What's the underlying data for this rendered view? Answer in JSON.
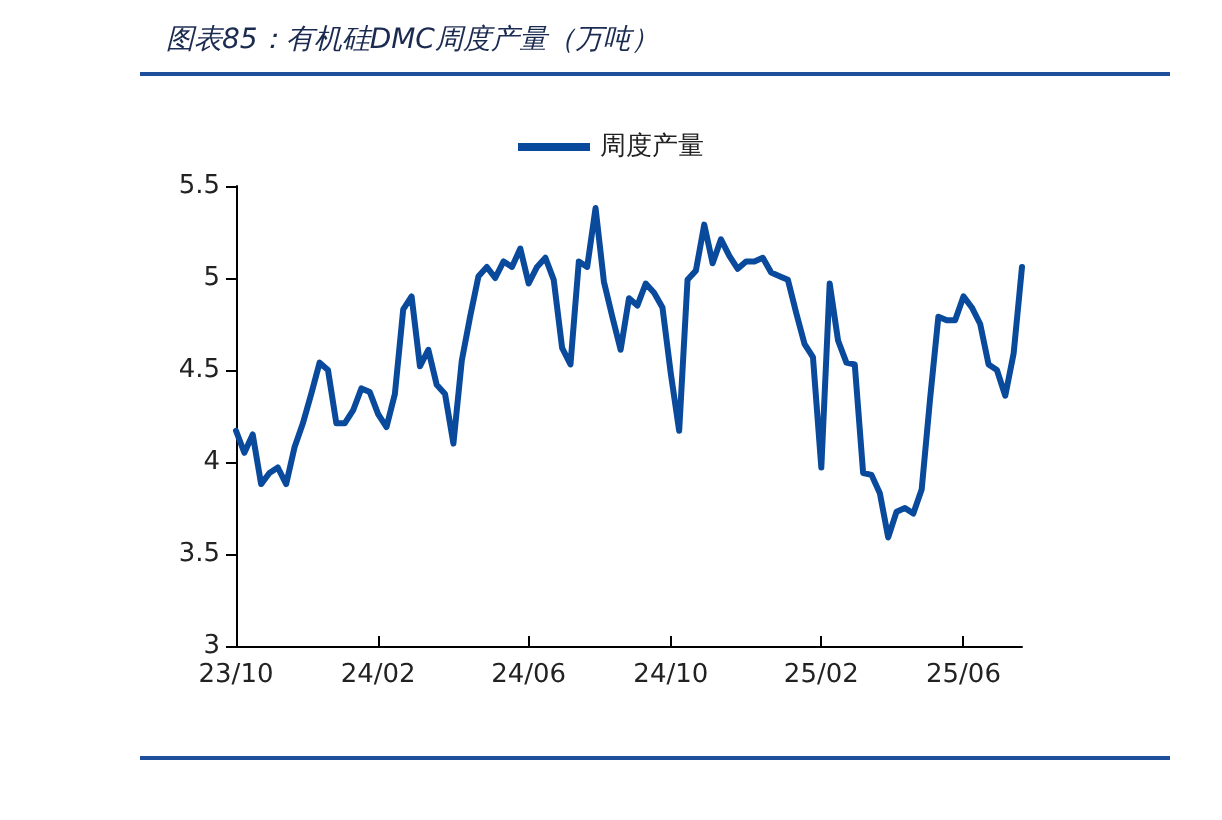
{
  "chart_data": {
    "type": "line",
    "title": "图表85：有机硅DMC周度产量（万吨）",
    "categories": [
      "23/10",
      null,
      null,
      null,
      null,
      null,
      null,
      null,
      null,
      null,
      null,
      null,
      null,
      null,
      null,
      null,
      null,
      "24/02",
      null,
      null,
      null,
      null,
      null,
      null,
      null,
      null,
      null,
      null,
      null,
      null,
      null,
      null,
      null,
      null,
      null,
      "24/06",
      null,
      null,
      null,
      null,
      null,
      null,
      null,
      null,
      null,
      null,
      null,
      null,
      null,
      null,
      null,
      null,
      "24/10",
      null,
      null,
      null,
      null,
      null,
      null,
      null,
      null,
      null,
      null,
      null,
      null,
      null,
      null,
      null,
      null,
      null,
      "25/02",
      null,
      null,
      null,
      null,
      null,
      null,
      null,
      null,
      null,
      null,
      null,
      null,
      null,
      null,
      null,
      null,
      "25/06",
      null,
      null,
      null,
      null,
      null,
      null,
      null
    ],
    "series": [
      {
        "name": "周度产量",
        "color": "#0a4a9c",
        "values": [
          4.17,
          4.05,
          4.15,
          3.88,
          3.94,
          3.97,
          3.88,
          4.08,
          4.21,
          4.37,
          4.54,
          4.5,
          4.21,
          4.21,
          4.28,
          4.4,
          4.38,
          4.26,
          4.19,
          4.37,
          4.83,
          4.9,
          4.52,
          4.61,
          4.42,
          4.37,
          4.1,
          4.55,
          4.79,
          5.01,
          5.06,
          5.0,
          5.09,
          5.06,
          5.16,
          4.97,
          5.06,
          5.11,
          4.99,
          4.62,
          4.53,
          5.09,
          5.06,
          5.38,
          4.98,
          4.79,
          4.61,
          4.89,
          4.85,
          4.97,
          4.92,
          4.84,
          4.48,
          4.17,
          4.99,
          5.04,
          5.29,
          5.08,
          5.21,
          5.12,
          5.05,
          5.09,
          5.09,
          5.11,
          5.03,
          5.01,
          4.99,
          4.81,
          4.64,
          4.57,
          3.97,
          4.97,
          4.66,
          4.54,
          4.53,
          3.94,
          3.93,
          3.83,
          3.59,
          3.73,
          3.75,
          3.72,
          3.85,
          4.34,
          4.79,
          4.77,
          4.77,
          4.9,
          4.84,
          4.75,
          4.53,
          4.5,
          4.36,
          4.59,
          5.06
        ]
      }
    ],
    "ylim": [
      3,
      5.5
    ],
    "yticks": [
      3,
      3.5,
      4,
      4.5,
      5,
      5.5
    ],
    "grid": false,
    "legend": "top",
    "marker": "none",
    "line_style": "solid"
  }
}
